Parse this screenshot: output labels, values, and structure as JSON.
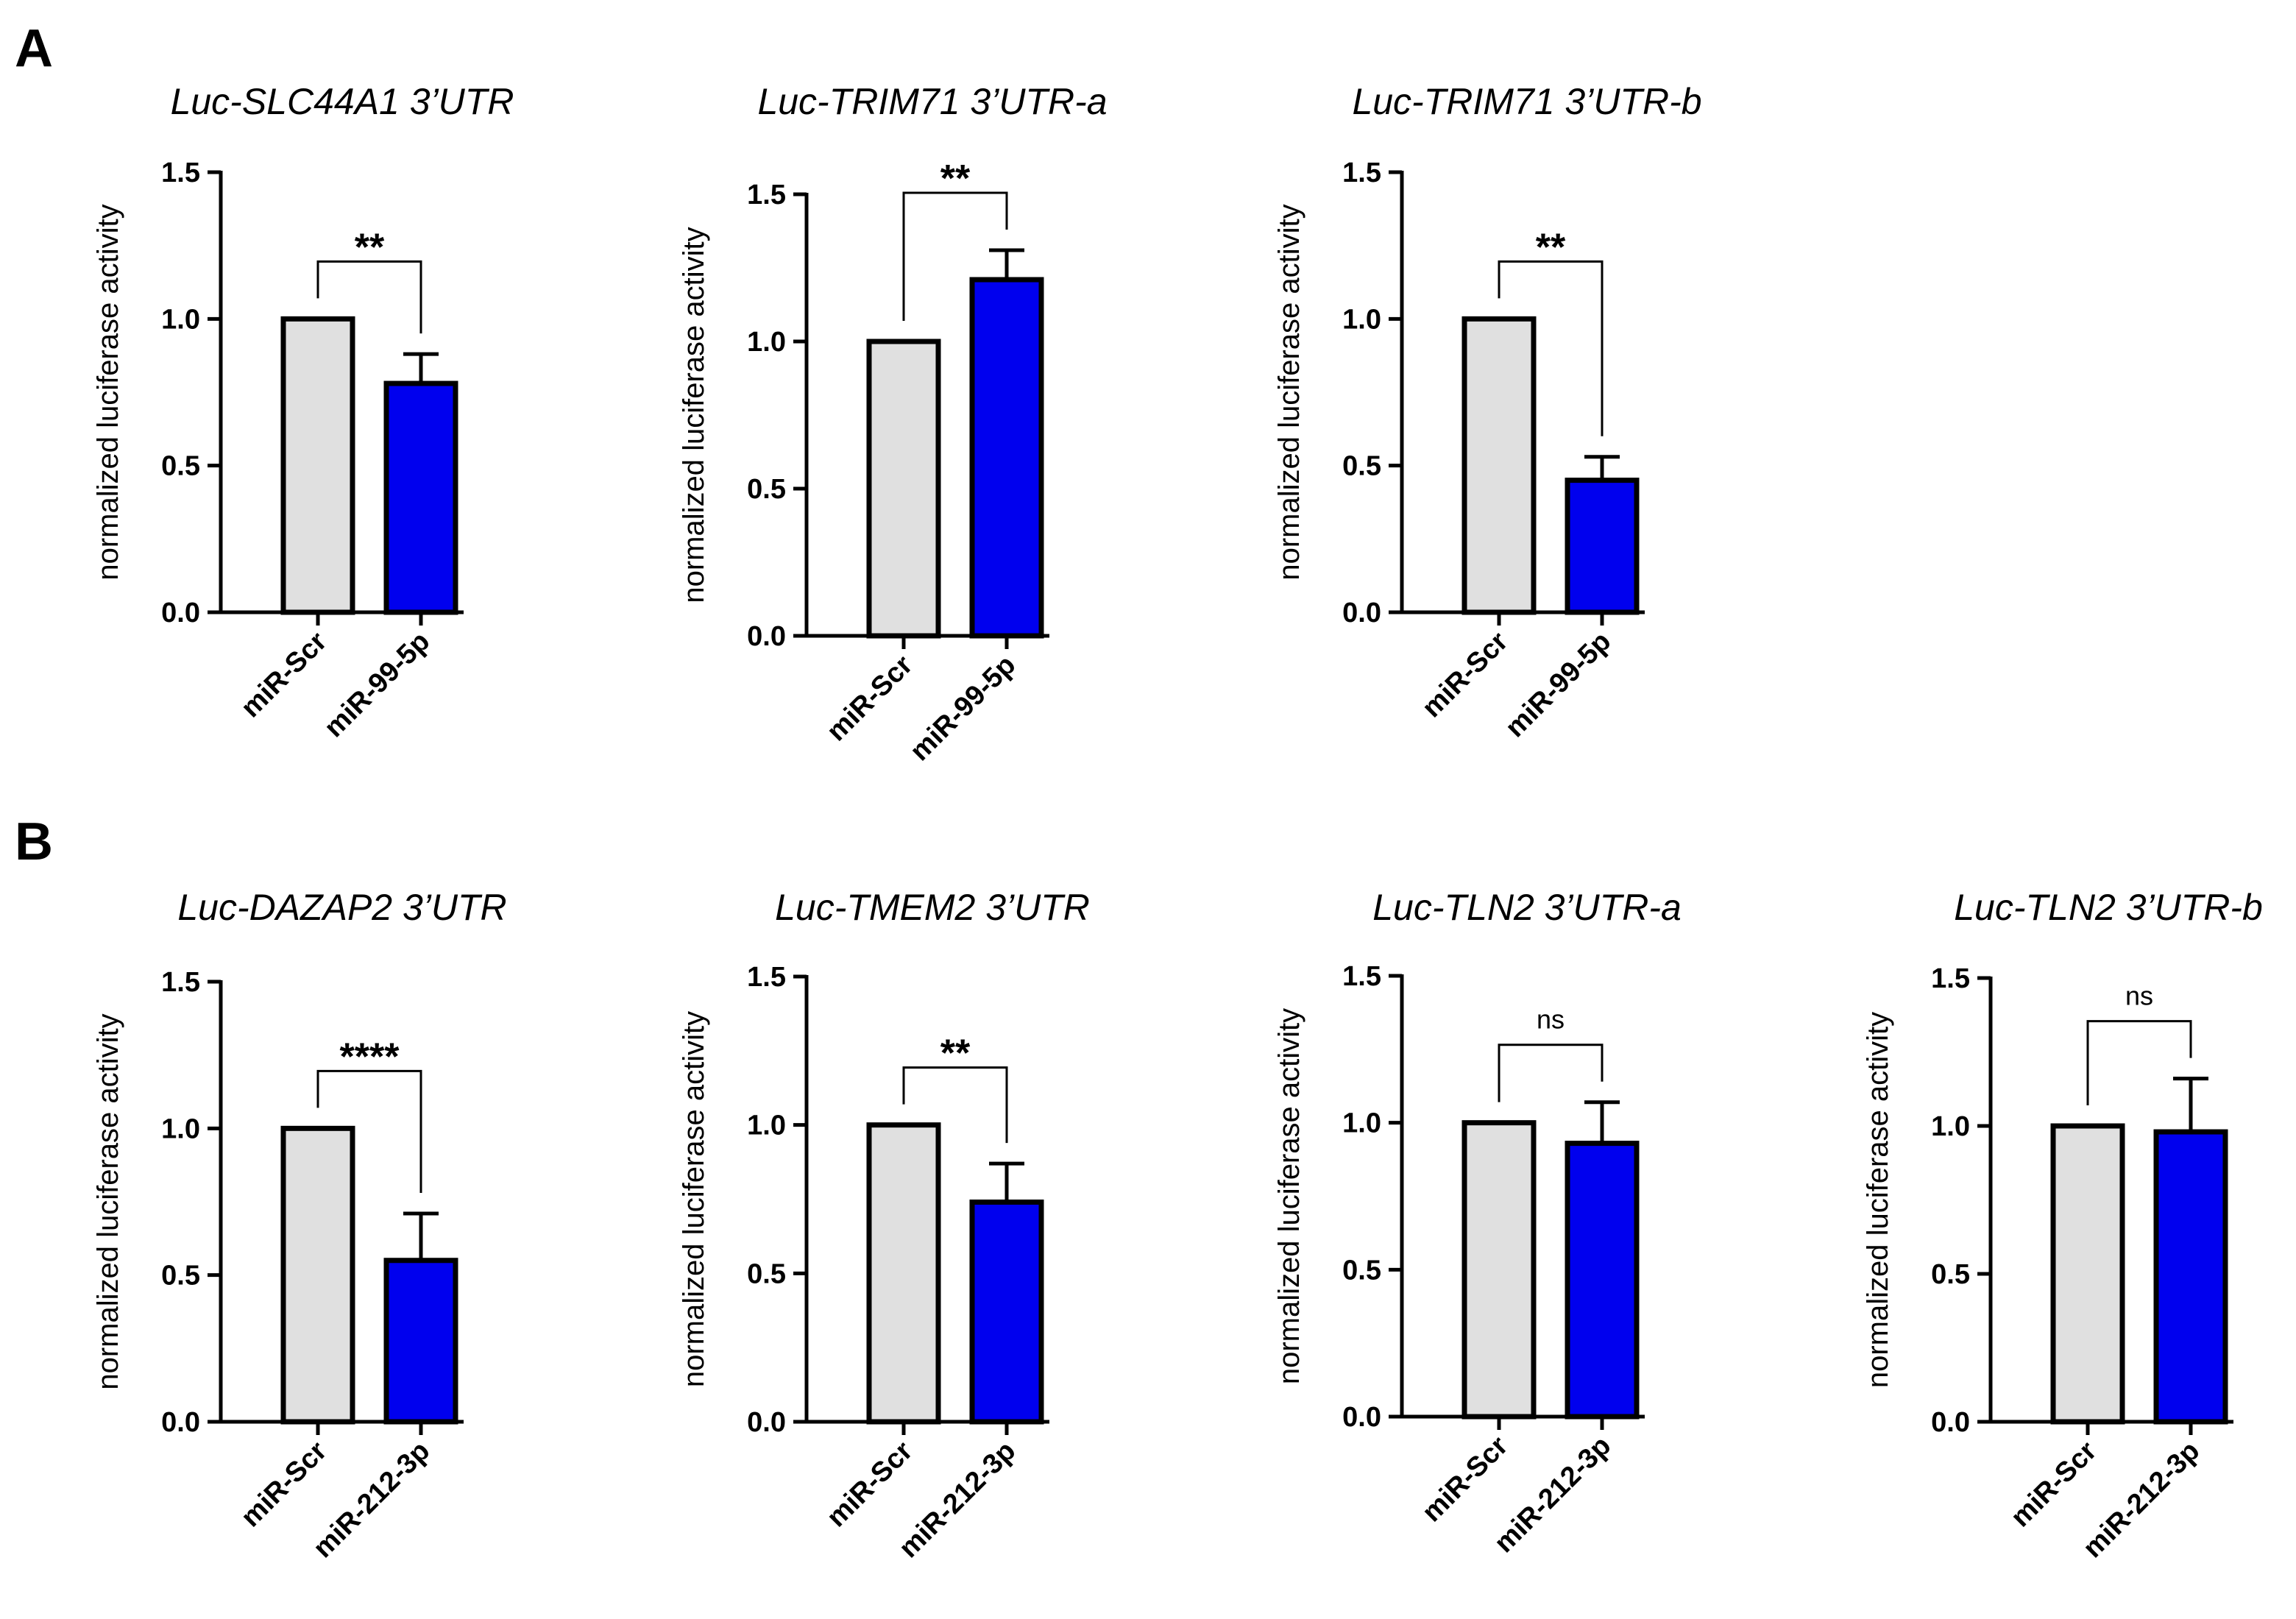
{
  "panels": [
    {
      "letter": "A"
    },
    {
      "letter": "B"
    }
  ],
  "colors": {
    "control": "#e0e0e0",
    "treatment": "#0000ee",
    "stroke": "#000000"
  },
  "chart_data": [
    {
      "type": "bar",
      "panel": "A",
      "title": "Luc-SLC44A1 3’UTR",
      "ylabel": "normalized luciferase activity",
      "xlabel": "",
      "ylim": [
        0,
        1.5
      ],
      "yticks": [
        "0.0",
        "0.5",
        "1.0",
        "1.5"
      ],
      "categories": [
        "miR-Scr",
        "miR-99-5p"
      ],
      "values": [
        1.0,
        0.78
      ],
      "errors": [
        0,
        0.1
      ],
      "significance": "**"
    },
    {
      "type": "bar",
      "panel": "A",
      "title": "Luc-TRIM71 3’UTR-a",
      "ylabel": "normalized luciferase activity",
      "xlabel": "",
      "ylim": [
        0,
        1.5
      ],
      "yticks": [
        "0.0",
        "0.5",
        "1.0",
        "1.5"
      ],
      "categories": [
        "miR-Scr",
        "miR-99-5p"
      ],
      "values": [
        1.0,
        1.21
      ],
      "errors": [
        0,
        0.1
      ],
      "significance": "**"
    },
    {
      "type": "bar",
      "panel": "A",
      "title": "Luc-TRIM71 3’UTR-b",
      "ylabel": "normalized luciferase activity",
      "xlabel": "",
      "ylim": [
        0,
        1.5
      ],
      "yticks": [
        "0.0",
        "0.5",
        "1.0",
        "1.5"
      ],
      "categories": [
        "miR-Scr",
        "miR-99-5p"
      ],
      "values": [
        1.0,
        0.45
      ],
      "errors": [
        0,
        0.08
      ],
      "significance": "**"
    },
    {
      "type": "bar",
      "panel": "B",
      "title": "Luc-DAZAP2 3’UTR",
      "ylabel": "normalized luciferase activity",
      "xlabel": "",
      "ylim": [
        0,
        1.5
      ],
      "yticks": [
        "0.0",
        "0.5",
        "1.0",
        "1.5"
      ],
      "categories": [
        "miR-Scr",
        "miR-212-3p"
      ],
      "values": [
        1.0,
        0.55
      ],
      "errors": [
        0,
        0.16
      ],
      "significance": "****"
    },
    {
      "type": "bar",
      "panel": "B",
      "title": "Luc-TMEM2 3’UTR",
      "ylabel": "normalized luciferase activity",
      "xlabel": "",
      "ylim": [
        0,
        1.5
      ],
      "yticks": [
        "0.0",
        "0.5",
        "1.0",
        "1.5"
      ],
      "categories": [
        "miR-Scr",
        "miR-212-3p"
      ],
      "values": [
        1.0,
        0.74
      ],
      "errors": [
        0,
        0.13
      ],
      "significance": "**"
    },
    {
      "type": "bar",
      "panel": "B",
      "title": "Luc-TLN2 3’UTR-a",
      "ylabel": "normalized luciferase activity",
      "xlabel": "",
      "ylim": [
        0,
        1.5
      ],
      "yticks": [
        "0.0",
        "0.5",
        "1.0",
        "1.5"
      ],
      "categories": [
        "miR-Scr",
        "miR-212-3p"
      ],
      "values": [
        1.0,
        0.93
      ],
      "errors": [
        0,
        0.14
      ],
      "significance": "ns"
    },
    {
      "type": "bar",
      "panel": "B",
      "title": "Luc-TLN2 3’UTR-b",
      "ylabel": "normalized luciferase activity",
      "xlabel": "",
      "ylim": [
        0,
        1.5
      ],
      "yticks": [
        "0.0",
        "0.5",
        "1.0",
        "1.5"
      ],
      "categories": [
        "miR-Scr",
        "miR-212-3p"
      ],
      "values": [
        1.0,
        0.98
      ],
      "errors": [
        0,
        0.18
      ],
      "significance": "ns"
    }
  ]
}
